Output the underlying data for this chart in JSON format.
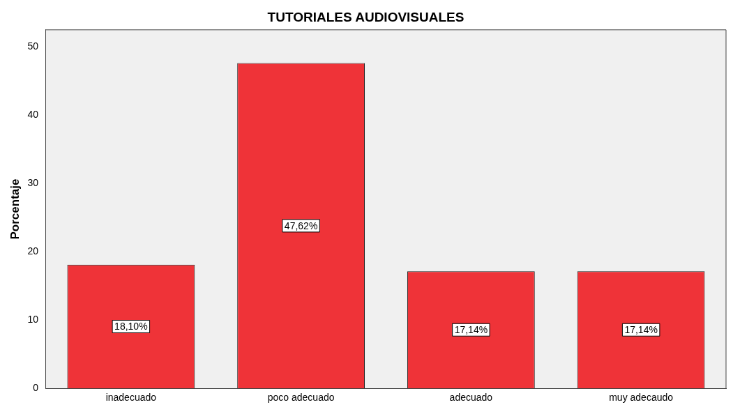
{
  "chart_data": {
    "type": "bar",
    "title": "TUTORIALES AUDIOVISUALES",
    "ylabel": "Porcentaje",
    "categories": [
      "inadecuado",
      "poco adecuado",
      "adecuado",
      "muy adecaudo"
    ],
    "values": [
      18.1,
      47.62,
      17.14,
      17.14
    ],
    "value_labels": [
      "18,10%",
      "47,62%",
      "17,14%",
      "17,14%"
    ],
    "color": "#ef3338",
    "ylim": [
      0,
      52.5
    ],
    "yticks": [
      0,
      10,
      20,
      30,
      40,
      50
    ],
    "grid": false,
    "legend": false
  }
}
